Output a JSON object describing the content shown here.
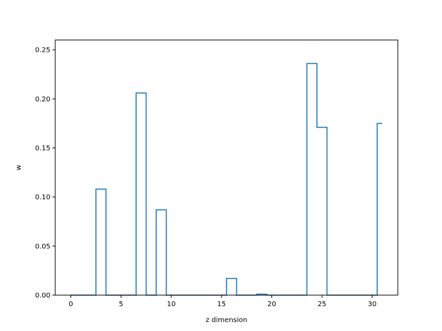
{
  "chart_data": {
    "type": "line",
    "drawstyle": "steps-mid",
    "xlabel": "z dimension",
    "ylabel": "w",
    "xlim": [
      -1.55,
      32.55
    ],
    "ylim": [
      0,
      0.26
    ],
    "xticks": [
      0,
      5,
      10,
      15,
      20,
      25,
      30
    ],
    "yticks": [
      0.0,
      0.05,
      0.1,
      0.15,
      0.2,
      0.25
    ],
    "x": [
      0,
      1,
      2,
      3,
      4,
      5,
      6,
      7,
      8,
      9,
      10,
      11,
      12,
      13,
      14,
      15,
      16,
      17,
      18,
      19,
      20,
      21,
      22,
      23,
      24,
      25,
      26,
      27,
      28,
      29,
      30,
      31
    ],
    "values": [
      0,
      0,
      0,
      0.108,
      0,
      0,
      0,
      0.206,
      0,
      0.087,
      0,
      0,
      0,
      0,
      0,
      0,
      0.017,
      0,
      0,
      0.001,
      0,
      0,
      0,
      0,
      0.236,
      0.171,
      0,
      0,
      0,
      0,
      0,
      0.175
    ],
    "grid": false,
    "line_color": "#1f77b4"
  }
}
